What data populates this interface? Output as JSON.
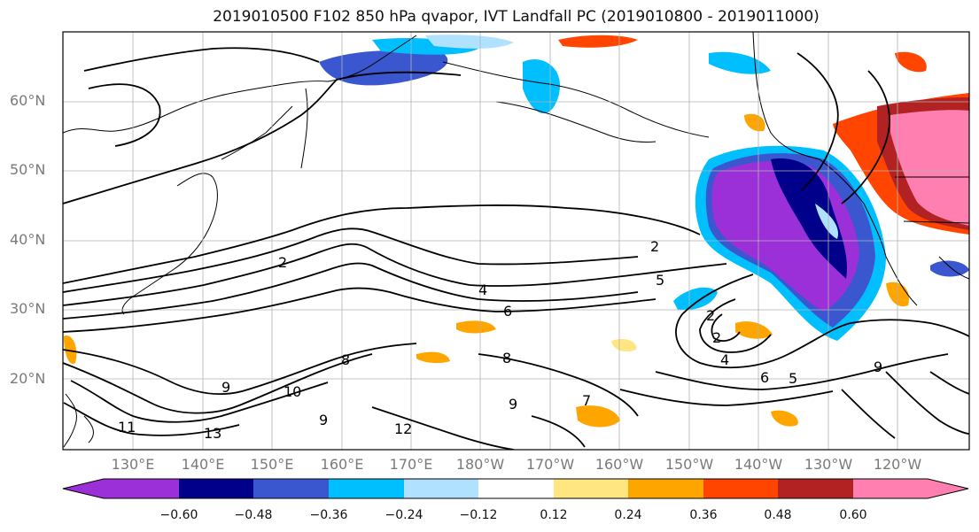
{
  "title": "2019010500 F102 850 hPa qvapor, IVT Landfall PC (2019010800 - 2019011000)",
  "lat_labels": [
    "60°N",
    "50°N",
    "40°N",
    "30°N",
    "20°N"
  ],
  "lon_labels": [
    "130°E",
    "140°E",
    "150°E",
    "160°E",
    "170°E",
    "180°W",
    "170°W",
    "160°W",
    "150°W",
    "140°W",
    "130°W",
    "120°W"
  ],
  "contour_labels": [
    "2",
    "2",
    "2",
    "2",
    "4",
    "4",
    "5",
    "6",
    "6",
    "5",
    "8",
    "8",
    "9",
    "10",
    "11",
    "13",
    "7",
    "9",
    "9",
    "9",
    "12"
  ],
  "colorbar": {
    "tick_labels": [
      "−0.60",
      "−0.48",
      "−0.36",
      "−0.24",
      "−0.12",
      "0.12",
      "0.24",
      "0.36",
      "0.48",
      "0.60"
    ],
    "colors": [
      "#9b30d9",
      "#00008b",
      "#3a57d0",
      "#00bfff",
      "#b0e2ff",
      "#ffffff",
      "#ffe680",
      "#ffa500",
      "#ff4500",
      "#b22222",
      "#ff80b0"
    ]
  }
}
